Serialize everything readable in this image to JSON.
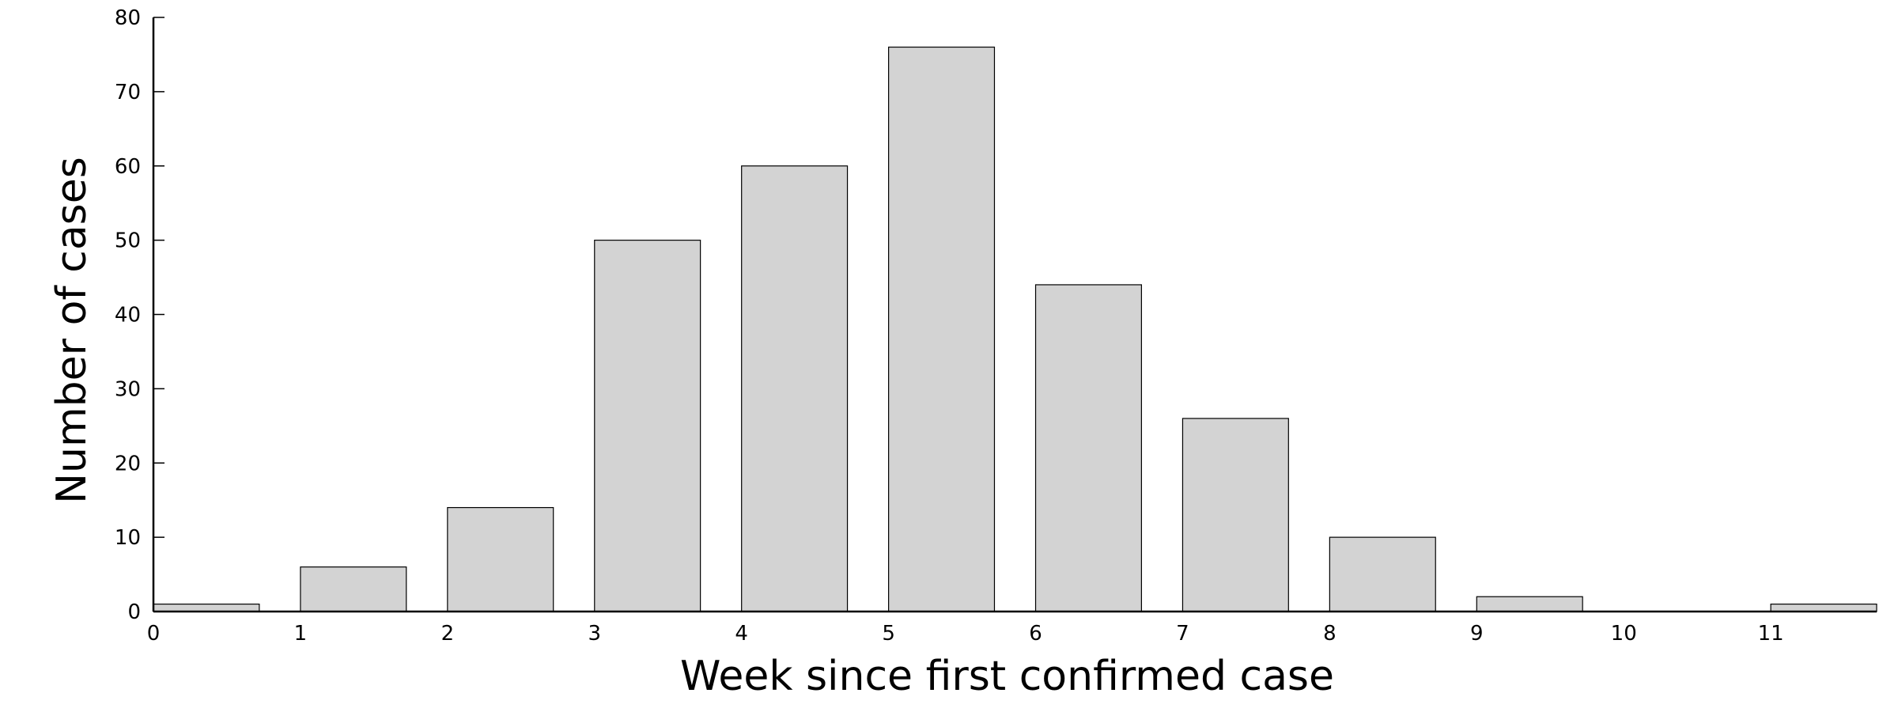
{
  "chart_data": {
    "type": "bar",
    "x": [
      0,
      1,
      2,
      3,
      4,
      5,
      6,
      7,
      8,
      9,
      10,
      11
    ],
    "values": [
      1,
      6,
      14,
      50,
      60,
      76,
      44,
      26,
      10,
      2,
      0,
      1
    ],
    "xlabel": "Week since first confirmed case",
    "ylabel": "Number of cases",
    "ylim": [
      0,
      80
    ],
    "yticks": [
      0,
      10,
      20,
      30,
      40,
      50,
      60,
      70,
      80
    ],
    "xticks": [
      0,
      1,
      2,
      3,
      4,
      5,
      6,
      7,
      8,
      9,
      10,
      11
    ],
    "bar_width_weeks": 0.72,
    "bar_color": "#d3d3d3",
    "edge_color": "#000000",
    "grid": false
  }
}
